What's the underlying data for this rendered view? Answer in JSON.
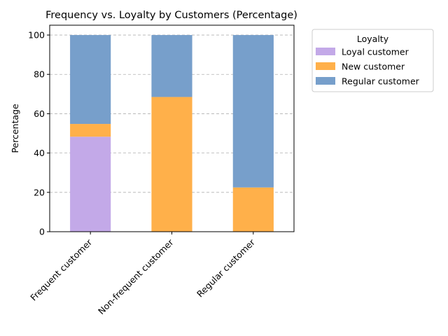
{
  "chart_data": {
    "type": "bar",
    "stacked": true,
    "title": "Frequency vs. Loyalty by Customers (Percentage)",
    "xlabel": "",
    "ylabel": "Percentage",
    "ylim": [
      0,
      105
    ],
    "yticks": [
      0,
      20,
      40,
      60,
      80,
      100
    ],
    "grid": "y-dashed",
    "legend": {
      "title": "Loyalty",
      "placement": "outside-right-top"
    },
    "categories": [
      "Frequent customer",
      "Non-frequent customer",
      "Regular customer"
    ],
    "series": [
      {
        "name": "Loyal customer",
        "color": "#c3a9e8",
        "values": [
          48.3,
          0,
          0
        ]
      },
      {
        "name": "New customer",
        "color": "#ffb04a",
        "values": [
          6.5,
          68.5,
          22.5
        ]
      },
      {
        "name": "Regular customer",
        "color": "#779fcb",
        "values": [
          45.2,
          31.5,
          77.5
        ]
      }
    ]
  }
}
